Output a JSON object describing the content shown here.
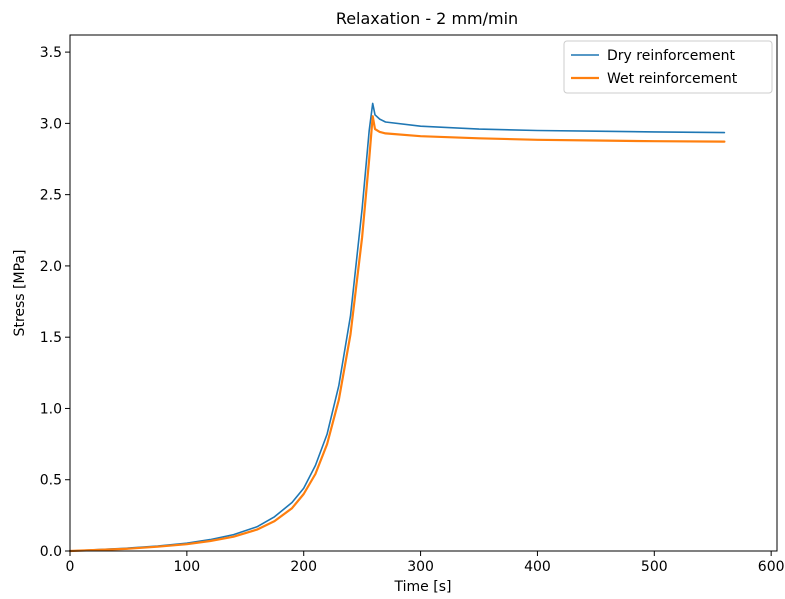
{
  "chart_data": {
    "type": "line",
    "title": "Relaxation - 2 mm/min",
    "xlabel": "Time [s]",
    "ylabel": "Stress [MPa]",
    "xlim": [
      0,
      605
    ],
    "ylim": [
      0,
      3.62
    ],
    "xticks": [
      0,
      100,
      200,
      300,
      400,
      500,
      600
    ],
    "yticks": [
      0.0,
      0.5,
      1.0,
      1.5,
      2.0,
      2.5,
      3.0,
      3.5
    ],
    "xtick_labels": [
      "0",
      "100",
      "200",
      "300",
      "400",
      "500",
      "600"
    ],
    "ytick_labels": [
      "0.0",
      "0.5",
      "1.0",
      "1.5",
      "2.0",
      "2.5",
      "3.0",
      "3.5"
    ],
    "grid": false,
    "legend_position": "top-right",
    "series": [
      {
        "name": "Dry reinforcement",
        "color": "#1f77b4",
        "x": [
          0,
          25,
          50,
          75,
          100,
          120,
          140,
          160,
          175,
          190,
          200,
          210,
          220,
          230,
          240,
          250,
          256,
          259,
          261,
          265,
          270,
          300,
          350,
          400,
          450,
          500,
          560
        ],
        "y": [
          0.0,
          0.01,
          0.02,
          0.035,
          0.055,
          0.08,
          0.115,
          0.17,
          0.24,
          0.34,
          0.44,
          0.6,
          0.82,
          1.16,
          1.65,
          2.4,
          2.95,
          3.14,
          3.06,
          3.03,
          3.01,
          2.98,
          2.96,
          2.95,
          2.945,
          2.94,
          2.935
        ]
      },
      {
        "name": "Wet reinforcement",
        "color": "#ff7f0e",
        "x": [
          0,
          25,
          50,
          75,
          100,
          120,
          140,
          160,
          175,
          190,
          200,
          210,
          220,
          230,
          240,
          250,
          256,
          259,
          261,
          265,
          270,
          300,
          350,
          400,
          450,
          500,
          560
        ],
        "y": [
          0.0,
          0.008,
          0.016,
          0.03,
          0.048,
          0.07,
          0.1,
          0.15,
          0.21,
          0.3,
          0.4,
          0.54,
          0.75,
          1.06,
          1.52,
          2.2,
          2.75,
          3.05,
          2.96,
          2.94,
          2.93,
          2.91,
          2.895,
          2.885,
          2.88,
          2.875,
          2.872
        ]
      }
    ]
  }
}
